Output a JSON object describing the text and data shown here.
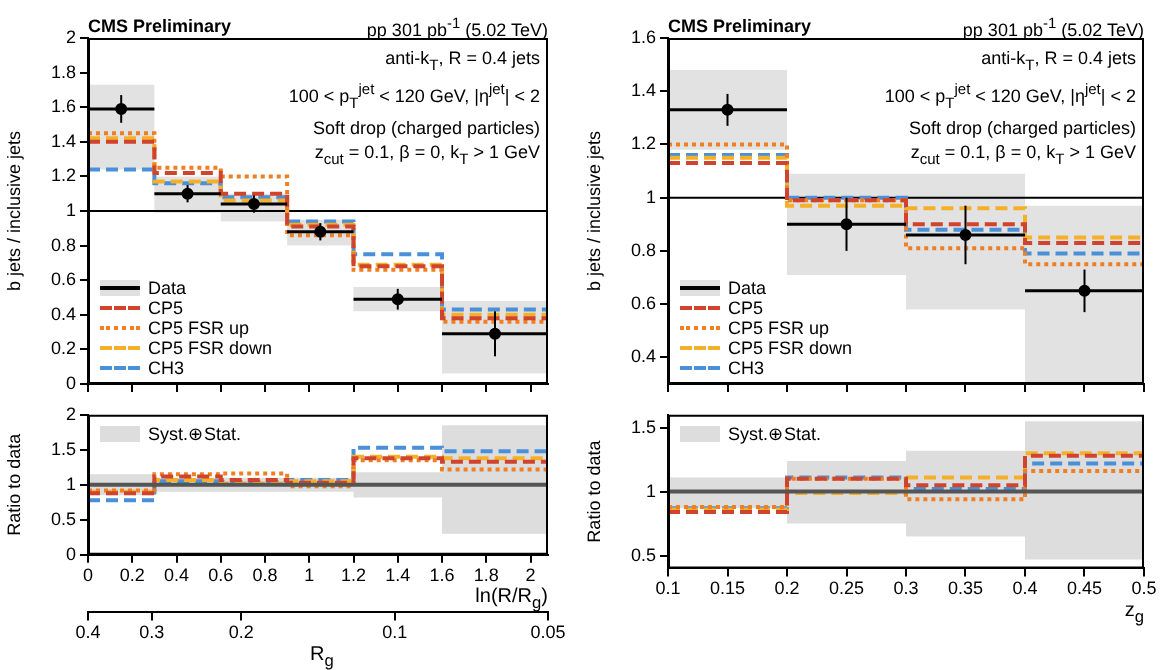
{
  "chart_data": [
    {
      "type": "step",
      "title": "CMS Preliminary",
      "subtitle": "pp 301 pb$^{-1}$ (5.02 TeV)",
      "ylabel": "b jets / inclusive jets",
      "annotations": [
        "anti-k$_{T}$, R = 0.4 jets",
        "100 < p$_{T}$$^{jet}$ < 120 GeV, |η$^{jet}$| < 2",
        "Soft drop (charged particles)",
        "z$_{cut}$ = 0.1, β = 0, k$_{T}$ > 1 GeV"
      ],
      "xlim": [
        0,
        2.079
      ],
      "xticks": [
        0,
        0.2,
        0.4,
        0.6,
        0.8,
        1,
        1.2,
        1.4,
        1.6,
        1.8,
        2
      ],
      "ylim": [
        0,
        2
      ],
      "yticks": [
        0,
        0.2,
        0.4,
        0.6,
        0.8,
        1,
        1.2,
        1.4,
        1.6,
        1.8,
        2
      ],
      "tick_labels": "y",
      "legend": "bottom left",
      "ref_lines": [
        {
          "axis": "y",
          "value": 1
        }
      ],
      "series": [
        {
          "type": "step",
          "color": "#6e6e6e",
          "x": [
            0,
            0.3,
            0.6,
            0.9,
            1.2,
            1.6,
            2.079
          ],
          "values": [
            null,
            null,
            null,
            null,
            null,
            null,
            null
          ],
          "lower": [
            1.24,
            0.99,
            0.94,
            0.8,
            0.42,
            0.06,
            0.06
          ],
          "upper": [
            1.73,
            1.2,
            1.1,
            0.95,
            0.56,
            0.48,
            0.48
          ]
        },
        {
          "name": "Data",
          "type": "scatter",
          "marker": "circle",
          "color": "#000000",
          "x": [
            0.15,
            0.45,
            0.75,
            1.05,
            1.4,
            1.8395
          ],
          "values": [
            1.59,
            1.1,
            1.04,
            0.88,
            0.49,
            0.29
          ],
          "errors": [
            0.08,
            0.05,
            0.05,
            0.05,
            0.06,
            0.13
          ],
          "xerrors": [
            0.15,
            0.15,
            0.15,
            0.15,
            0.2,
            0.2395
          ]
        },
        {
          "name": "CP5",
          "type": "step",
          "line_style": "dashed",
          "color": "#d0432c",
          "x": [
            0,
            0.3,
            0.6,
            0.9,
            1.2,
            1.6,
            2.079
          ],
          "values": [
            1.4,
            1.22,
            1.1,
            0.91,
            0.68,
            0.38,
            0.38
          ]
        },
        {
          "name": "CP5 FSR up",
          "type": "step",
          "line_style": "dotted",
          "color": "#f07f22",
          "x": [
            0,
            0.3,
            0.6,
            0.9,
            1.2,
            1.6,
            2.079
          ],
          "values": [
            1.45,
            1.25,
            1.2,
            0.86,
            0.66,
            0.36,
            0.36
          ]
        },
        {
          "name": "CP5 FSR down",
          "type": "step",
          "line_style": "dashed",
          "color": "#f5b02a",
          "x": [
            0,
            0.3,
            0.6,
            0.9,
            1.2,
            1.6,
            2.079
          ],
          "values": [
            1.42,
            1.17,
            1.06,
            0.92,
            0.69,
            0.4,
            0.4
          ]
        },
        {
          "name": "CH3",
          "type": "step",
          "line_style": "dashed",
          "color": "#4a90d9",
          "x": [
            0,
            0.3,
            0.6,
            0.9,
            1.2,
            1.6,
            2.079
          ],
          "values": [
            1.24,
            1.16,
            1.08,
            0.94,
            0.75,
            0.43,
            0.43
          ]
        }
      ]
    },
    {
      "type": "step",
      "ylabel": "Ratio to data",
      "xlabel": "ln(R/R$_{g}$)",
      "x2label": "R$_{g}$",
      "xlim": [
        0,
        2.079
      ],
      "xticks": [
        0,
        0.2,
        0.4,
        0.6,
        0.8,
        1,
        1.2,
        1.4,
        1.6,
        1.8,
        2
      ],
      "x2lim": [
        0.4,
        0.05
      ],
      "x2ticks": [
        0.4,
        0.3,
        0.2,
        0.1,
        0.05
      ],
      "log": "x2",
      "ylim": [
        0,
        2
      ],
      "yticks": [
        0,
        0.5,
        1,
        1.5,
        2
      ],
      "legend": "top left",
      "series": [
        {
          "name": "Syst.⊕Stat.",
          "type": "step",
          "line_style": "solid",
          "color": "#555555",
          "x": [
            0,
            0.3,
            0.6,
            0.9,
            1.2,
            1.6,
            2.079
          ],
          "values": [
            1,
            1,
            1,
            1,
            1,
            1,
            1
          ],
          "lower": [
            0.85,
            0.9,
            0.9,
            0.9,
            0.82,
            0.3,
            0.3
          ],
          "upper": [
            1.15,
            1.1,
            1.1,
            1.1,
            1.18,
            1.85,
            1.85
          ]
        },
        {
          "type": "step",
          "line_style": "dashed",
          "color": "#d0432c",
          "x": [
            0,
            0.3,
            0.6,
            0.9,
            1.2,
            1.6,
            2.079
          ],
          "values": [
            0.88,
            1.12,
            1.07,
            1.03,
            1.38,
            1.33,
            1.33
          ]
        },
        {
          "type": "step",
          "line_style": "dotted",
          "color": "#f07f22",
          "x": [
            0,
            0.3,
            0.6,
            0.9,
            1.2,
            1.6,
            2.079
          ],
          "values": [
            0.92,
            1.15,
            1.16,
            0.98,
            1.35,
            1.22,
            1.22
          ]
        },
        {
          "type": "step",
          "line_style": "dashed",
          "color": "#f5b02a",
          "x": [
            0,
            0.3,
            0.6,
            0.9,
            1.2,
            1.6,
            2.079
          ],
          "values": [
            0.9,
            1.07,
            1.02,
            1.05,
            1.4,
            1.38,
            1.38
          ]
        },
        {
          "type": "step",
          "line_style": "dashed",
          "color": "#4a90d9",
          "x": [
            0,
            0.3,
            0.6,
            0.9,
            1.2,
            1.6,
            2.079
          ],
          "values": [
            0.78,
            1.05,
            1.04,
            1.07,
            1.53,
            1.48,
            1.48
          ]
        }
      ]
    },
    {
      "type": "step",
      "title": "CMS Preliminary",
      "subtitle": "pp 301 pb$^{-1}$ (5.02 TeV)",
      "ylabel": "b jets / inclusive jets",
      "annotations": [
        "anti-k$_{T}$, R = 0.4 jets",
        "100 < p$_{T}$$^{jet}$ < 120 GeV, |η$^{jet}$| < 2",
        "Soft drop (charged particles)",
        "z$_{cut}$ = 0.1, β = 0, k$_{T}$ > 1 GeV"
      ],
      "xlim": [
        0.1,
        0.5
      ],
      "xticks": [
        0.1,
        0.15,
        0.2,
        0.25,
        0.3,
        0.35,
        0.4,
        0.45,
        0.5
      ],
      "ylim": [
        0.3,
        1.6
      ],
      "yticks": [
        0.4,
        0.6,
        0.8,
        1,
        1.2,
        1.4,
        1.6
      ],
      "tick_labels": "y",
      "legend": "bottom left",
      "ref_lines": [
        {
          "axis": "y",
          "value": 1
        }
      ],
      "series": [
        {
          "type": "step",
          "color": "#6e6e6e",
          "x": [
            0.1,
            0.2,
            0.3,
            0.4,
            0.5
          ],
          "values": [
            null,
            null,
            null,
            null,
            null
          ],
          "lower": [
            1.18,
            0.71,
            0.58,
            0.3,
            0.3
          ],
          "upper": [
            1.48,
            1.09,
            1.09,
            0.97,
            0.97
          ]
        },
        {
          "name": "Data",
          "type": "scatter",
          "marker": "circle",
          "color": "#000000",
          "x": [
            0.15,
            0.25,
            0.35,
            0.45
          ],
          "values": [
            1.33,
            0.9,
            0.86,
            0.65
          ],
          "errors": [
            0.06,
            0.1,
            0.11,
            0.08
          ],
          "xerrors": [
            0.05,
            0.05,
            0.05,
            0.05
          ]
        },
        {
          "name": "CP5",
          "type": "step",
          "line_style": "dashed",
          "color": "#d0432c",
          "x": [
            0.1,
            0.2,
            0.3,
            0.4,
            0.5
          ],
          "values": [
            1.13,
            0.99,
            0.9,
            0.83,
            0.83
          ]
        },
        {
          "name": "CP5 FSR up",
          "type": "step",
          "line_style": "dotted",
          "color": "#f07f22",
          "x": [
            0.1,
            0.2,
            0.3,
            0.4,
            0.5
          ],
          "values": [
            1.2,
            0.99,
            0.81,
            0.75,
            0.75
          ]
        },
        {
          "name": "CP5 FSR down",
          "type": "step",
          "line_style": "dashed",
          "color": "#f5b02a",
          "x": [
            0.1,
            0.2,
            0.3,
            0.4,
            0.5
          ],
          "values": [
            1.15,
            0.97,
            0.96,
            0.85,
            0.85
          ]
        },
        {
          "name": "CH3",
          "type": "step",
          "line_style": "dashed",
          "color": "#4a90d9",
          "x": [
            0.1,
            0.2,
            0.3,
            0.4,
            0.5
          ],
          "values": [
            1.16,
            1,
            0.88,
            0.79,
            0.79
          ]
        }
      ]
    },
    {
      "type": "step",
      "ylabel": "Ratio to data",
      "xlabel": "z$_{g}$",
      "xlim": [
        0.1,
        0.5
      ],
      "xticks": [
        0.1,
        0.15,
        0.2,
        0.25,
        0.3,
        0.35,
        0.4,
        0.45,
        0.5
      ],
      "ylim": [
        0.4,
        1.6
      ],
      "yticks": [
        0.5,
        1,
        1.5
      ],
      "legend": "top left",
      "series": [
        {
          "name": "Syst.⊕Stat.",
          "type": "step",
          "line_style": "solid",
          "color": "#555555",
          "x": [
            0.1,
            0.2,
            0.3,
            0.4,
            0.5
          ],
          "values": [
            1,
            1,
            1,
            1,
            1
          ],
          "lower": [
            0.87,
            0.75,
            0.65,
            0.47,
            0.47
          ],
          "upper": [
            1.11,
            1.24,
            1.32,
            1.55,
            1.55
          ]
        },
        {
          "type": "step",
          "line_style": "dashed",
          "color": "#d0432c",
          "x": [
            0.1,
            0.2,
            0.3,
            0.4,
            0.5
          ],
          "values": [
            0.84,
            1.1,
            1.05,
            1.28,
            1.28
          ]
        },
        {
          "type": "step",
          "line_style": "dotted",
          "color": "#f07f22",
          "x": [
            0.1,
            0.2,
            0.3,
            0.4,
            0.5
          ],
          "values": [
            0.88,
            1.1,
            0.94,
            1.16,
            1.16
          ]
        },
        {
          "type": "step",
          "line_style": "dashed",
          "color": "#f5b02a",
          "x": [
            0.1,
            0.2,
            0.3,
            0.4,
            0.5
          ],
          "values": [
            0.86,
            0.99,
            1.11,
            1.3,
            1.3
          ]
        },
        {
          "type": "step",
          "line_style": "dashed",
          "color": "#4a90d9",
          "x": [
            0.1,
            0.2,
            0.3,
            0.4,
            0.5
          ],
          "values": [
            0.87,
            1.11,
            1.02,
            1.22,
            1.22
          ]
        }
      ]
    }
  ]
}
